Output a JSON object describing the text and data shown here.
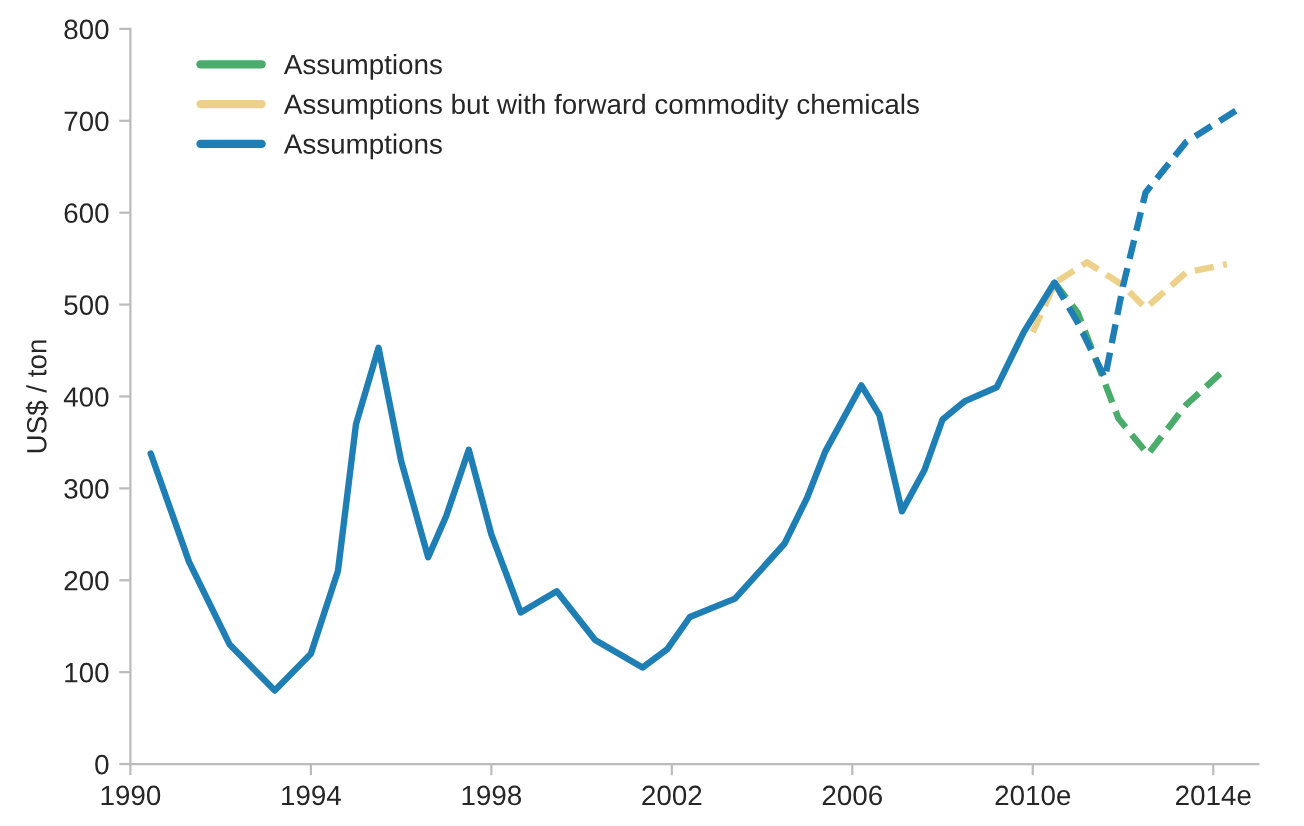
{
  "chart_data": {
    "type": "line",
    "ylabel": "US$ / ton",
    "xlim": [
      1990,
      2015
    ],
    "xticks": [
      1990,
      1994,
      1998,
      2002,
      2006,
      {
        "value": 2010,
        "label": "2010e"
      },
      {
        "value": 2014,
        "label": "2014e"
      }
    ],
    "ylim": [
      0,
      800
    ],
    "yticks": [
      0,
      100,
      200,
      300,
      400,
      500,
      600,
      700,
      800
    ],
    "grid": false,
    "legend": "top left",
    "marker": "none",
    "series": [
      {
        "name": "Assumptions",
        "color": "#4aab6a",
        "line_style": "dashed",
        "x": [
          2010.48,
          2011.0,
          2011.9,
          2012.55,
          2013.4,
          2014.2
        ],
        "values": [
          524,
          491,
          376,
          337,
          391,
          427
        ]
      },
      {
        "name": "Assumptions but with forward commodity chemicals",
        "color": "#edd08a",
        "line_style": "dashed",
        "x": [
          2010.0,
          2010.5,
          2011.2,
          2012.0,
          2012.5,
          2013.4,
          2014.3
        ],
        "values": [
          470,
          524,
          546,
          521,
          496,
          535,
          544
        ]
      },
      {
        "name": "Assumptions",
        "color": "#1f7fb5",
        "line_style": "solid",
        "x": [
          1990.45,
          1991.3,
          1992.2,
          1993.2,
          1994.0,
          1994.6,
          1995.0,
          1995.5,
          1996.0,
          1996.6,
          1997.0,
          1997.5,
          1998.0,
          1998.65,
          1999.45,
          2000.3,
          2001.35,
          2001.9,
          2002.4,
          2003.4,
          2004.5,
          2005.0,
          2005.4,
          2006.2,
          2006.6,
          2007.1,
          2007.6,
          2008.0,
          2008.5,
          2009.2,
          2009.8,
          2010.48
        ],
        "values": [
          338,
          220,
          130,
          80,
          120,
          210,
          370,
          453,
          330,
          225,
          270,
          342,
          250,
          165,
          188,
          135,
          105,
          125,
          160,
          180,
          240,
          290,
          340,
          412,
          380,
          275,
          320,
          375,
          395,
          410,
          470,
          524
        ]
      },
      {
        "color": "#1f7fb5",
        "line_style": "dashed",
        "x": [
          2010.48,
          2011.0,
          2011.6,
          2012.0,
          2012.5,
          2013.4,
          2014.5
        ],
        "values": [
          524,
          480,
          420,
          520,
          622,
          677,
          711
        ]
      }
    ]
  }
}
